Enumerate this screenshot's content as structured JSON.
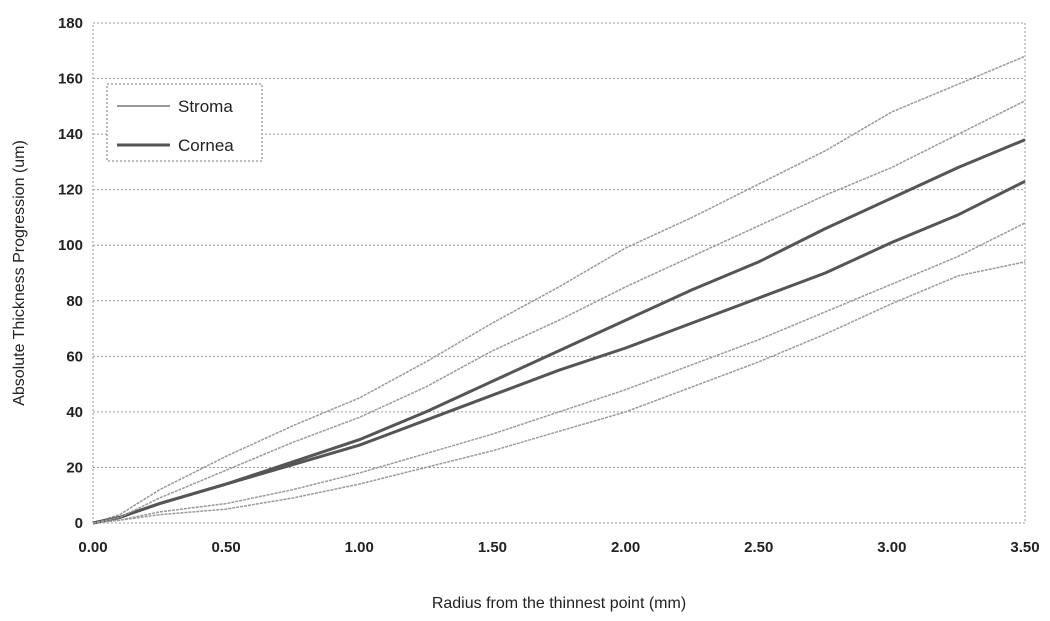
{
  "chart_data": {
    "type": "line",
    "title": "",
    "xlabel": "Radius from the thinnest point (mm)",
    "ylabel": "Absolute Thickness Progression (um)",
    "xlim": [
      0,
      3.5
    ],
    "ylim": [
      0,
      180
    ],
    "x_ticks": [
      "0.00",
      "0.50",
      "1.00",
      "1.50",
      "2.00",
      "2.50",
      "3.00",
      "3.50"
    ],
    "y_ticks": [
      "0",
      "20",
      "40",
      "60",
      "80",
      "100",
      "120",
      "140",
      "160",
      "180"
    ],
    "grid": "horizontal dashed",
    "legend": {
      "placement": "top-left",
      "entries": [
        {
          "name": "Stroma",
          "color": "#9a9a9a"
        },
        {
          "name": "Cornea",
          "color": "#555555"
        }
      ]
    },
    "series": [
      {
        "name": "Cornea",
        "role": "mean",
        "color": "#555555",
        "x": [
          0,
          0.1,
          0.25,
          0.5,
          0.75,
          1.0,
          1.25,
          1.5,
          1.75,
          2.0,
          2.25,
          2.5,
          2.75,
          3.0,
          3.25,
          3.5
        ],
        "values": [
          0,
          2,
          7,
          14,
          22,
          30,
          40,
          51,
          62,
          73,
          84,
          94,
          106,
          117,
          128,
          138
        ]
      },
      {
        "name": "Cornea",
        "role": "upper",
        "color": "#9a9a9a",
        "x": [
          0,
          0.1,
          0.25,
          0.5,
          0.75,
          1.0,
          1.25,
          1.5,
          1.75,
          2.0,
          2.25,
          2.5,
          2.75,
          3.0,
          3.25,
          3.5
        ],
        "values": [
          0,
          3,
          12,
          24,
          35,
          45,
          58,
          72,
          85,
          99,
          110,
          122,
          134,
          148,
          158,
          168
        ]
      },
      {
        "name": "Cornea",
        "role": "lower",
        "color": "#9a9a9a",
        "x": [
          0,
          0.1,
          0.25,
          0.5,
          0.75,
          1.0,
          1.25,
          1.5,
          1.75,
          2.0,
          2.25,
          2.5,
          2.75,
          3.0,
          3.25,
          3.5
        ],
        "values": [
          0,
          1,
          4,
          7,
          12,
          18,
          25,
          32,
          40,
          48,
          57,
          66,
          76,
          86,
          96,
          108
        ]
      },
      {
        "name": "Stroma",
        "role": "mean",
        "color": "#555555",
        "x": [
          0,
          0.1,
          0.25,
          0.5,
          0.75,
          1.0,
          1.25,
          1.5,
          1.75,
          2.0,
          2.25,
          2.5,
          2.75,
          3.0,
          3.25,
          3.5
        ],
        "values": [
          0,
          2,
          7,
          14,
          21,
          28,
          37,
          46,
          55,
          63,
          72,
          81,
          90,
          101,
          111,
          123
        ]
      },
      {
        "name": "Stroma",
        "role": "upper",
        "color": "#9a9a9a",
        "x": [
          0,
          0.1,
          0.25,
          0.5,
          0.75,
          1.0,
          1.25,
          1.5,
          1.75,
          2.0,
          2.25,
          2.5,
          2.75,
          3.0,
          3.25,
          3.5
        ],
        "values": [
          0,
          2,
          9,
          19,
          29,
          38,
          49,
          62,
          73,
          85,
          96,
          107,
          118,
          128,
          140,
          152
        ]
      },
      {
        "name": "Stroma",
        "role": "lower",
        "color": "#9a9a9a",
        "x": [
          0,
          0.1,
          0.25,
          0.5,
          0.75,
          1.0,
          1.25,
          1.5,
          1.75,
          2.0,
          2.25,
          2.5,
          2.75,
          3.0,
          3.25,
          3.5
        ],
        "values": [
          0,
          1,
          3,
          5,
          9,
          14,
          20,
          26,
          33,
          40,
          49,
          58,
          68,
          79,
          89,
          94
        ]
      }
    ]
  }
}
